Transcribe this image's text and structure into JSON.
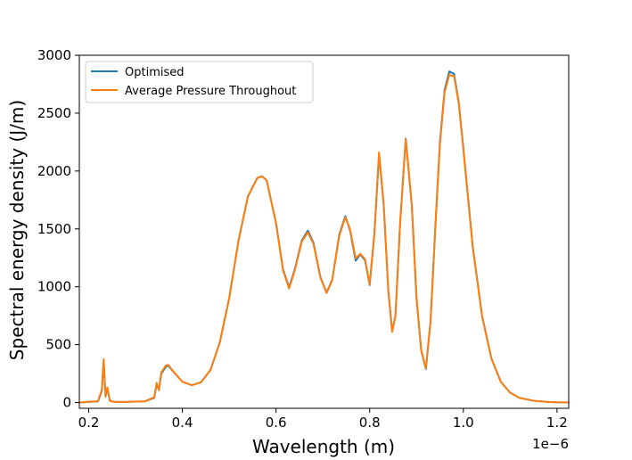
{
  "chart_data": {
    "type": "line",
    "title": "",
    "xlabel": "Wavelength (m)",
    "ylabel": "Spectral energy density (J/m)",
    "x_offset_label": "1e−6",
    "xlim": [
      0.18,
      1.225
    ],
    "ylim": [
      -50,
      3000
    ],
    "xticks": [
      0.2,
      0.4,
      0.6,
      0.8,
      1.0,
      1.2
    ],
    "xtick_labels": [
      "0.2",
      "0.4",
      "0.6",
      "0.8",
      "1.0",
      "1.2"
    ],
    "yticks": [
      0,
      500,
      1000,
      1500,
      2000,
      2500,
      3000
    ],
    "ytick_labels": [
      "0",
      "500",
      "1000",
      "1500",
      "2000",
      "2500",
      "3000"
    ],
    "grid": false,
    "legend_position": "top-left",
    "series": [
      {
        "name": "Optimised",
        "color": "#1f77b4",
        "x": [
          0.18,
          0.22,
          0.228,
          0.232,
          0.236,
          0.24,
          0.245,
          0.25,
          0.26,
          0.28,
          0.3,
          0.32,
          0.34,
          0.345,
          0.35,
          0.355,
          0.36,
          0.365,
          0.37,
          0.38,
          0.4,
          0.42,
          0.44,
          0.46,
          0.48,
          0.5,
          0.52,
          0.54,
          0.56,
          0.57,
          0.58,
          0.6,
          0.615,
          0.628,
          0.64,
          0.655,
          0.668,
          0.68,
          0.695,
          0.708,
          0.72,
          0.735,
          0.748,
          0.758,
          0.77,
          0.78,
          0.79,
          0.8,
          0.81,
          0.82,
          0.83,
          0.84,
          0.848,
          0.855,
          0.865,
          0.877,
          0.89,
          0.9,
          0.91,
          0.92,
          0.93,
          0.94,
          0.95,
          0.96,
          0.97,
          0.98,
          0.99,
          1.0,
          1.02,
          1.04,
          1.06,
          1.08,
          1.1,
          1.12,
          1.15,
          1.18,
          1.2,
          1.225
        ],
        "y": [
          0,
          10,
          100,
          360,
          60,
          120,
          20,
          8,
          5,
          5,
          8,
          10,
          40,
          160,
          110,
          250,
          280,
          310,
          320,
          270,
          180,
          150,
          175,
          280,
          520,
          900,
          1400,
          1780,
          1940,
          1955,
          1920,
          1550,
          1150,
          995,
          1150,
          1400,
          1485,
          1380,
          1080,
          950,
          1060,
          1450,
          1610,
          1490,
          1225,
          1280,
          1230,
          1015,
          1450,
          2150,
          1700,
          950,
          615,
          750,
          1550,
          2280,
          1700,
          900,
          450,
          290,
          700,
          1500,
          2250,
          2700,
          2860,
          2840,
          2600,
          2200,
          1350,
          750,
          380,
          180,
          85,
          40,
          15,
          5,
          2,
          1
        ]
      },
      {
        "name": "Average Pressure Throughout",
        "color": "#ff7f0e",
        "x": [
          0.18,
          0.22,
          0.228,
          0.232,
          0.236,
          0.24,
          0.245,
          0.25,
          0.26,
          0.28,
          0.3,
          0.32,
          0.34,
          0.345,
          0.35,
          0.355,
          0.36,
          0.365,
          0.37,
          0.38,
          0.4,
          0.42,
          0.44,
          0.46,
          0.48,
          0.5,
          0.52,
          0.54,
          0.56,
          0.57,
          0.58,
          0.6,
          0.615,
          0.628,
          0.64,
          0.655,
          0.668,
          0.68,
          0.695,
          0.708,
          0.72,
          0.735,
          0.748,
          0.758,
          0.77,
          0.78,
          0.79,
          0.8,
          0.81,
          0.82,
          0.83,
          0.84,
          0.848,
          0.855,
          0.865,
          0.877,
          0.89,
          0.9,
          0.91,
          0.92,
          0.93,
          0.94,
          0.95,
          0.96,
          0.97,
          0.98,
          0.99,
          1.0,
          1.02,
          1.04,
          1.06,
          1.08,
          1.1,
          1.12,
          1.15,
          1.18,
          1.2,
          1.225
        ],
        "y": [
          0,
          12,
          110,
          375,
          50,
          130,
          15,
          8,
          5,
          5,
          8,
          10,
          45,
          170,
          105,
          260,
          290,
          320,
          325,
          272,
          180,
          150,
          175,
          280,
          520,
          900,
          1400,
          1780,
          1940,
          1955,
          1920,
          1550,
          1140,
          985,
          1140,
          1390,
          1470,
          1370,
          1075,
          945,
          1055,
          1440,
          1600,
          1500,
          1245,
          1285,
          1240,
          1020,
          1460,
          2160,
          1710,
          960,
          610,
          745,
          1545,
          2275,
          1710,
          910,
          455,
          295,
          705,
          1495,
          2230,
          2680,
          2830,
          2820,
          2590,
          2190,
          1345,
          745,
          378,
          178,
          84,
          40,
          15,
          5,
          2,
          1
        ]
      }
    ]
  }
}
